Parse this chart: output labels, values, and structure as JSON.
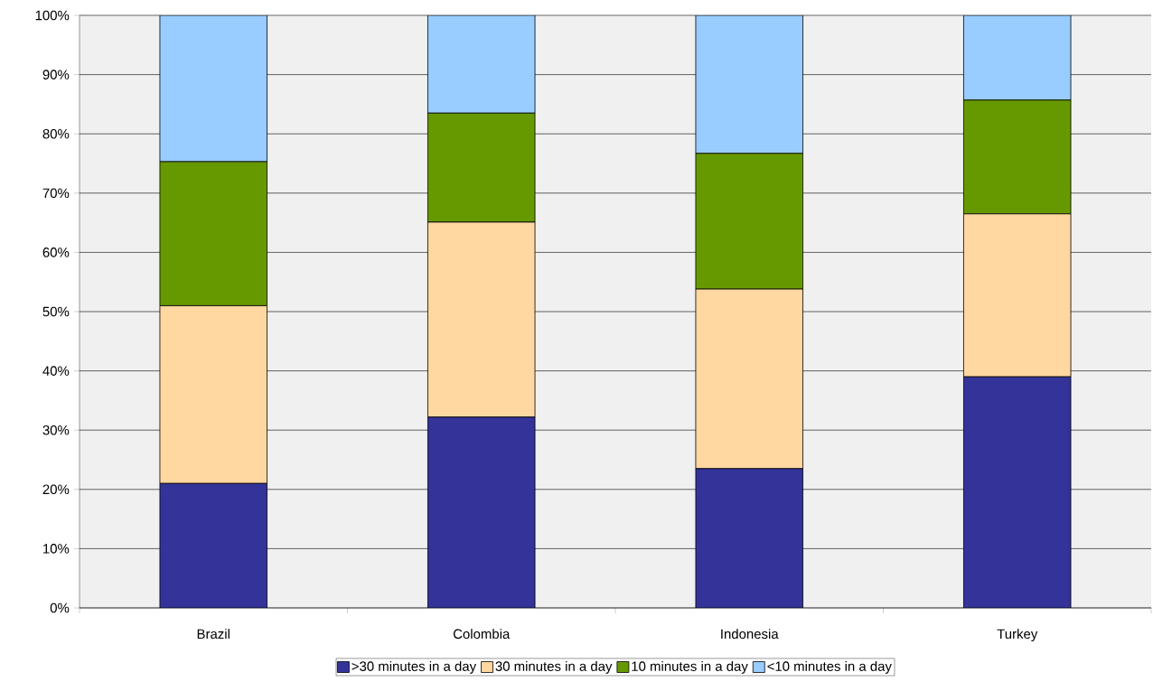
{
  "chart_data": {
    "type": "bar",
    "stacked": true,
    "categories": [
      "Brazil",
      "Colombia",
      "Indonesia",
      "Turkey"
    ],
    "series": [
      {
        "name": ">30 minutes in a day",
        "color": "#333399",
        "values": [
          21.0,
          32.2,
          23.5,
          39.0
        ]
      },
      {
        "name": "30 minutes in a day",
        "color": "#ffd7a0",
        "values": [
          30.0,
          32.9,
          30.3,
          27.5
        ]
      },
      {
        "name": "10 minutes in a day",
        "color": "#669900",
        "values": [
          24.3,
          18.4,
          22.9,
          19.2
        ]
      },
      {
        "name": "<10 minutes in a day",
        "color": "#99ccff",
        "values": [
          24.7,
          16.5,
          23.3,
          14.3
        ]
      }
    ],
    "ylim": [
      0,
      100
    ],
    "yticks": [
      {
        "value": 0,
        "label": "0%"
      },
      {
        "value": 10,
        "label": "10%"
      },
      {
        "value": 20,
        "label": "20%"
      },
      {
        "value": 30,
        "label": "30%"
      },
      {
        "value": 40,
        "label": "40%"
      },
      {
        "value": 50,
        "label": "50%"
      },
      {
        "value": 60,
        "label": "60%"
      },
      {
        "value": 70,
        "label": "70%"
      },
      {
        "value": 80,
        "label": "80%"
      },
      {
        "value": 90,
        "label": "90%"
      },
      {
        "value": 100,
        "label": "100%"
      }
    ],
    "grid": "y",
    "legend": "bottom"
  }
}
